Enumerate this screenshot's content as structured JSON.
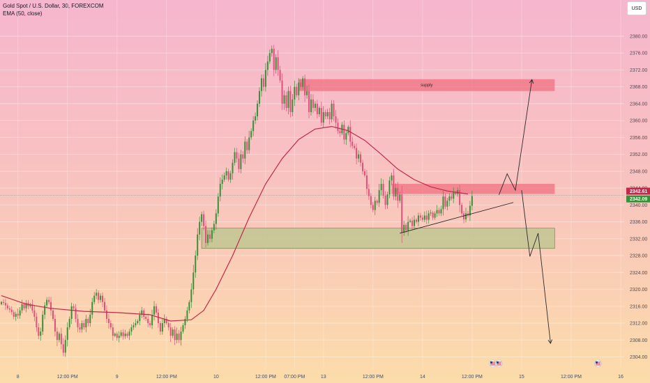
{
  "header": {
    "symbol_title": "Gold Spot / U.S. Dollar, 30, FOREXCOM",
    "indicator": "EMA (50, close)"
  },
  "toolbar": {
    "currency": "USD"
  },
  "colors": {
    "up": "#3a8f3a",
    "down": "#e0507a",
    "ema": "#c2284a",
    "supply_zone": "#f07080",
    "demand_zone": "#b8c48e",
    "price_tag_red": "#c2284a",
    "price_tag_green": "#3a8f3a",
    "flag_icon": "us-flag-icon"
  },
  "chart_data": {
    "type": "candlestick",
    "y_axis": {
      "range": [
        2302,
        2384
      ],
      "ticks": [
        2304,
        2308,
        2312,
        2316,
        2320,
        2324,
        2328,
        2332,
        2336,
        2340,
        2344,
        2348,
        2352,
        2356,
        2360,
        2364,
        2368,
        2372,
        2376,
        2380
      ],
      "tick_labels": [
        "2304.00",
        "2308.00",
        "2312.00",
        "2316.00",
        "2320.00",
        "2324.00",
        "2328.00",
        "2332.00",
        "2336.00",
        "2340.00",
        "2344.00",
        "2348.00",
        "2352.00",
        "2356.00",
        "2360.00",
        "2364.00",
        "2368.00",
        "2372.00",
        "2376.00",
        "2380.00"
      ]
    },
    "x_axis": {
      "ticks": [
        {
          "label": "8",
          "bar": 8
        },
        {
          "label": "12:00 PM",
          "bar": 32
        },
        {
          "label": "9",
          "bar": 56
        },
        {
          "label": "12:00 PM",
          "bar": 80
        },
        {
          "label": "10",
          "bar": 104
        },
        {
          "label": "12:00 PM",
          "bar": 128
        },
        {
          "label": "07:00 PM",
          "bar": 142
        },
        {
          "label": "13",
          "bar": 156
        },
        {
          "label": "12:00 PM",
          "bar": 180
        },
        {
          "label": "14",
          "bar": 204
        },
        {
          "label": "12:00 PM",
          "bar": 228
        },
        {
          "label": "15",
          "bar": 252
        },
        {
          "label": "12:00 PM",
          "bar": 276
        },
        {
          "label": "16",
          "bar": 300
        }
      ],
      "event_icons": [
        238,
        241,
        289
      ]
    },
    "candles_open": 2316.5,
    "candles_close_prices": [
      2317,
      2316.8,
      2316.2,
      2315.5,
      2315.2,
      2314.6,
      2313.5,
      2314.2,
      2313.8,
      2315,
      2316.5,
      2315.5,
      2316.8,
      2316,
      2316.5,
      2315,
      2313.5,
      2311,
      2309,
      2310,
      2314,
      2316.2,
      2317.5,
      2317,
      2315,
      2313,
      2310,
      2308,
      2309.5,
      2307,
      2305,
      2308,
      2311,
      2313,
      2316,
      2315.5,
      2313,
      2311,
      2310.5,
      2312,
      2311,
      2313,
      2312,
      2314,
      2317,
      2318.5,
      2319.2,
      2317.5,
      2318.5,
      2317,
      2315,
      2313,
      2312,
      2311,
      2309,
      2309.5,
      2308.5,
      2309,
      2309.8,
      2308.9,
      2309.5,
      2309,
      2310,
      2311,
      2311.5,
      2312,
      2312.5,
      2314,
      2315,
      2313.5,
      2313,
      2312,
      2311.5,
      2314,
      2316,
      2314.5,
      2312,
      2310,
      2312,
      2313,
      2312,
      2311,
      2309,
      2310.5,
      2308,
      2309.5,
      2308,
      2310,
      2311.5,
      2313,
      2315,
      2317,
      2320,
      2324,
      2328,
      2333,
      2336,
      2337.8,
      2335,
      2331,
      2333,
      2332,
      2334,
      2335.5,
      2338,
      2342,
      2345,
      2346,
      2347,
      2348,
      2346,
      2347.5,
      2350,
      2352.5,
      2351,
      2348.5,
      2352,
      2351,
      2355,
      2353,
      2356,
      2357.5,
      2360,
      2361,
      2364,
      2367,
      2370,
      2368,
      2372,
      2374,
      2376,
      2377,
      2372,
      2375,
      2372,
      2369.5,
      2364,
      2366,
      2363,
      2367,
      2362,
      2365,
      2368,
      2366,
      2369,
      2368,
      2370,
      2366,
      2367,
      2362,
      2365,
      2363,
      2364,
      2361.5,
      2363,
      2359.5,
      2362,
      2361,
      2362,
      2360.3,
      2364,
      2361,
      2359.5,
      2357.5,
      2357,
      2359,
      2355.5,
      2357,
      2358.5,
      2355,
      2354,
      2353.5,
      2351,
      2352,
      2350,
      2348,
      2347,
      2343.8,
      2342.1,
      2340,
      2338.8,
      2341,
      2340.5,
      2343.5,
      2345,
      2342.2,
      2340,
      2342.5,
      2345.8,
      2347,
      2342,
      2344,
      2341,
      2342.5,
      2333.5,
      2335.3,
      2334,
      2336,
      2336.3,
      2335,
      2336.5,
      2336,
      2337.5,
      2337,
      2336.5,
      2337.5,
      2336.5,
      2338,
      2338.2,
      2337,
      2338,
      2338.8,
      2338,
      2339,
      2342,
      2339.6,
      2341,
      2342,
      2341.5,
      2343,
      2342.6,
      2343.5,
      2340,
      2338,
      2336.6,
      2338,
      2337.5,
      2339.8,
      2342.1
    ],
    "ema": [
      {
        "bar": 0,
        "y": 2318.5
      },
      {
        "bar": 12,
        "y": 2316.5
      },
      {
        "bar": 24,
        "y": 2315.5
      },
      {
        "bar": 40,
        "y": 2314.8
      },
      {
        "bar": 56,
        "y": 2314.5
      },
      {
        "bar": 72,
        "y": 2314
      },
      {
        "bar": 82,
        "y": 2312.5
      },
      {
        "bar": 92,
        "y": 2312.8
      },
      {
        "bar": 98,
        "y": 2315
      },
      {
        "bar": 104,
        "y": 2320
      },
      {
        "bar": 112,
        "y": 2328
      },
      {
        "bar": 120,
        "y": 2337
      },
      {
        "bar": 128,
        "y": 2345
      },
      {
        "bar": 136,
        "y": 2351
      },
      {
        "bar": 144,
        "y": 2355.5
      },
      {
        "bar": 152,
        "y": 2358
      },
      {
        "bar": 160,
        "y": 2358.6
      },
      {
        "bar": 168,
        "y": 2357.6
      },
      {
        "bar": 176,
        "y": 2355.3
      },
      {
        "bar": 184,
        "y": 2352
      },
      {
        "bar": 192,
        "y": 2348.5
      },
      {
        "bar": 200,
        "y": 2346
      },
      {
        "bar": 208,
        "y": 2344.3
      },
      {
        "bar": 216,
        "y": 2343.3
      },
      {
        "bar": 226,
        "y": 2342.6
      }
    ],
    "zones": [
      {
        "kind": "supply",
        "label": "supply",
        "bar_from": 144,
        "bar_to": 268,
        "y_top": 2369.8,
        "y_bottom": 2367
      },
      {
        "kind": "resistance",
        "label": "",
        "bar_from": 189,
        "bar_to": 268,
        "y_top": 2345,
        "y_bottom": 2342.6
      },
      {
        "kind": "demand",
        "label": "",
        "bar_from": 97,
        "bar_to": 268,
        "y_top": 2334.5,
        "y_bottom": 2329.7
      }
    ],
    "trendline": [
      {
        "bar": 193,
        "y": 2333.3
      },
      {
        "bar": 248,
        "y": 2340.6
      }
    ],
    "projection_up": [
      {
        "bar": 241,
        "y": 2342.4
      },
      {
        "bar": 245,
        "y": 2347.4
      },
      {
        "bar": 249,
        "y": 2343.5
      },
      {
        "bar": 257,
        "y": 2369.7
      }
    ],
    "projection_down": [
      {
        "bar": 252,
        "y": 2343.5
      },
      {
        "bar": 256,
        "y": 2327.8
      },
      {
        "bar": 260,
        "y": 2333.3
      },
      {
        "bar": 266,
        "y": 2307.2
      }
    ],
    "current_price_line": 2342.3,
    "price_tags": [
      {
        "label": "2342.61",
        "y": 2342.61,
        "color": "#c2284a"
      },
      {
        "label": "2342.09",
        "y": 2342.09,
        "color": "#3a8f3a"
      }
    ]
  }
}
